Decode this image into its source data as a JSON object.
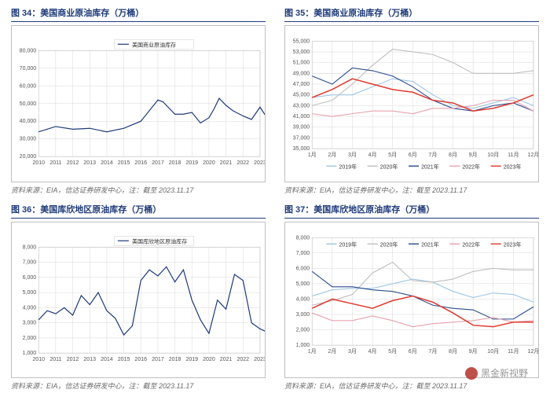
{
  "colors": {
    "title": "#1f3b7a",
    "grid": "#d8d8d8",
    "border": "#c0c0c0",
    "axis_text": "#555555",
    "source_text": "#6b6b6b",
    "series_2019": "#9ec7e6",
    "series_2020": "#bfbfbf",
    "series_2021": "#2a4c8f",
    "series_2022": "#e6a3ad",
    "series_2023": "#e03a2e",
    "line_main": "#1f3b7a"
  },
  "watermark": {
    "text": "黑金新视野"
  },
  "panels": {
    "p34": {
      "title": "图 34：美国商业原油库存（万桶）",
      "source": "资料来源：EIA，信达证券研发中心，注：截至 2023.11.17",
      "chart": {
        "type": "line",
        "legend": "美国商业原油库存",
        "ylim": [
          20000,
          80000
        ],
        "ytick_step": 10000,
        "xlabels": [
          "2010",
          "2011",
          "2012",
          "2013",
          "2014",
          "2015",
          "2016",
          "2017",
          "2018",
          "2019",
          "2020",
          "2021",
          "2022",
          "2023"
        ],
        "x": [
          0,
          1,
          2,
          3,
          4,
          5,
          6,
          6.5,
          7,
          7.3,
          7.6,
          8,
          8.5,
          9,
          9.5,
          10,
          10.3,
          10.6,
          11,
          11.4,
          12,
          12.5,
          13,
          13.4
        ],
        "y": [
          34000,
          37000,
          35500,
          36000,
          34000,
          36000,
          40000,
          46000,
          52000,
          51000,
          48000,
          44000,
          44000,
          45000,
          39000,
          42000,
          47000,
          53000,
          49000,
          46000,
          43000,
          41000,
          48000,
          42000
        ]
      }
    },
    "p35": {
      "title": "图 35：美国商业原油库存（万桶）",
      "source": "资料来源：EIA，信达证券研发中心，注：截至 2023.11.17",
      "chart": {
        "type": "multiline-year",
        "ylim": [
          35000,
          55000
        ],
        "ytick_step": 2000,
        "xlabels": [
          "1月",
          "2月",
          "3月",
          "4月",
          "5月",
          "6月",
          "7月",
          "8月",
          "9月",
          "10月",
          "11月",
          "12月"
        ],
        "legend": [
          "2019年",
          "2020年",
          "2021年",
          "2022年",
          "2023年"
        ],
        "series": {
          "2019": [
            44500,
            45000,
            45000,
            46500,
            48000,
            47500,
            45000,
            43000,
            42500,
            43500,
            44500,
            43000
          ],
          "2020": [
            43000,
            44000,
            47000,
            50500,
            53500,
            53000,
            52500,
            51000,
            49000,
            49000,
            49000,
            49500
          ],
          "2021": [
            48500,
            47000,
            50000,
            49500,
            48500,
            46500,
            44000,
            42500,
            42000,
            43000,
            43500,
            42000
          ],
          "2022": [
            41500,
            41000,
            41500,
            42000,
            42000,
            41500,
            42500,
            42500,
            43000,
            44000,
            44000,
            42000
          ],
          "2023": [
            44500,
            46000,
            48000,
            47000,
            46000,
            45500,
            44000,
            43500,
            42000,
            42500,
            43500,
            45000
          ]
        }
      }
    },
    "p36": {
      "title": "图 36：美国库欣地区原油库存（万桶）",
      "source": "资料来源：EIA，信达证券研发中心，注：截至 2023.11.17",
      "chart": {
        "type": "line",
        "legend": "美国库欣地区原油库存",
        "ylim": [
          1000,
          8000
        ],
        "ytick_step": 1000,
        "xlabels": [
          "2010",
          "2011",
          "2012",
          "2013",
          "2014",
          "2015",
          "2016",
          "2017",
          "2018",
          "2019",
          "2020",
          "2021",
          "2022",
          "2023"
        ],
        "x": [
          0,
          0.5,
          1,
          1.5,
          2,
          2.5,
          3,
          3.5,
          4,
          4.5,
          5,
          5.5,
          6,
          6.5,
          7,
          7.5,
          8,
          8.5,
          9,
          9.5,
          10,
          10.5,
          11,
          11.5,
          12,
          12.5,
          13,
          13.4
        ],
        "y": [
          3200,
          3800,
          3600,
          4000,
          3500,
          4800,
          4200,
          5000,
          3800,
          3300,
          2200,
          2800,
          5800,
          6500,
          6100,
          6700,
          5700,
          6500,
          4500,
          3200,
          2300,
          4500,
          3900,
          6200,
          5800,
          3000,
          2600,
          2400
        ]
      }
    },
    "p37": {
      "title": "图 37：美国库欣地区原油库存（万桶）",
      "source": "资料来源：EIA，信达证券研发中心，注：截至 2023.11.17",
      "chart": {
        "type": "multiline-year",
        "ylim": [
          1000,
          8000
        ],
        "ytick_step": 1000,
        "xlabels": [
          "1月",
          "2月",
          "3月",
          "4月",
          "5月",
          "6月",
          "7月",
          "8月",
          "9月",
          "10月",
          "11月",
          "12月"
        ],
        "legend": [
          "2019年",
          "2020年",
          "2021年",
          "2022年",
          "2023年"
        ],
        "series": {
          "2019": [
            4200,
            4600,
            4700,
            4700,
            5000,
            5300,
            5100,
            4500,
            4100,
            4400,
            4300,
            3800
          ],
          "2020": [
            3600,
            3900,
            4300,
            5700,
            6400,
            5200,
            5100,
            5300,
            5800,
            6000,
            5900,
            5900
          ],
          "2021": [
            5800,
            4800,
            4800,
            4600,
            4500,
            4200,
            3600,
            3400,
            3300,
            2700,
            2700,
            3500
          ],
          "2022": [
            3100,
            2600,
            2600,
            2900,
            2600,
            2200,
            2400,
            2500,
            2600,
            2800,
            2500,
            2600
          ],
          "2023": [
            3400,
            4000,
            3700,
            3400,
            3900,
            4200,
            3800,
            3100,
            2300,
            2200,
            2500,
            2500
          ]
        }
      }
    }
  }
}
